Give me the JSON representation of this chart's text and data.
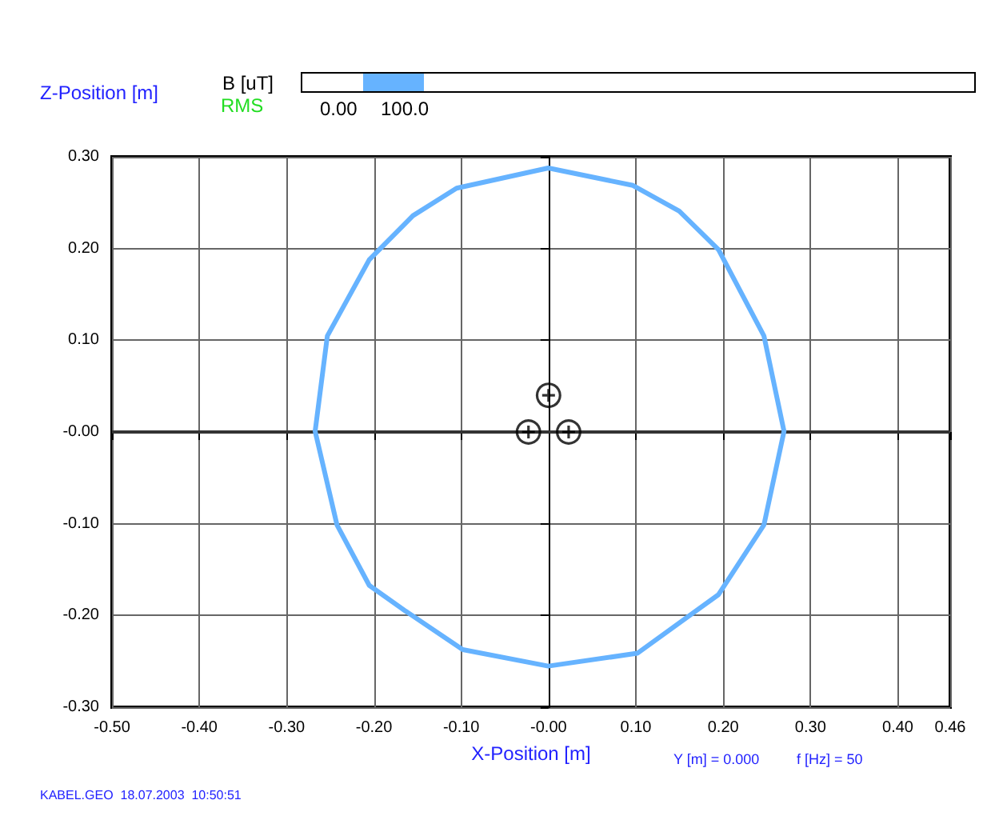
{
  "chart_data": {
    "type": "line",
    "xlabel": "X-Position [m]",
    "ylabel": "Z-Position [m]",
    "clabel": "B [uT]",
    "annotations": [
      "RMS",
      "Y [m] = 0.000",
      "f [Hz] = 50",
      "KABEL.GEO  18.07.2003  10:50:51",
      "0.00",
      "100.0"
    ],
    "xlim": [
      -0.5,
      0.46
    ],
    "ylim": [
      -0.3,
      0.3
    ],
    "xticks": [
      {
        "value": -0.5,
        "label": "-0.50"
      },
      {
        "value": -0.4,
        "label": "-0.40"
      },
      {
        "value": -0.3,
        "label": "-0.30"
      },
      {
        "value": -0.2,
        "label": "-0.20"
      },
      {
        "value": -0.1,
        "label": "-0.10"
      },
      {
        "value": 0,
        "label": "-0.00"
      },
      {
        "value": 0.1,
        "label": "0.10"
      },
      {
        "value": 0.2,
        "label": "0.20"
      },
      {
        "value": 0.3,
        "label": "0.30"
      },
      {
        "value": 0.4,
        "label": "0.40"
      },
      {
        "value": 0.46,
        "label": "0.46"
      }
    ],
    "yticks": [
      {
        "value": -0.3,
        "label": "-0.30"
      },
      {
        "value": -0.2,
        "label": "-0.20"
      },
      {
        "value": -0.1,
        "label": "-0.10"
      },
      {
        "value": 0,
        "label": "-0.00"
      },
      {
        "value": 0.1,
        "label": "0.10"
      },
      {
        "value": 0.2,
        "label": "0.20"
      },
      {
        "value": 0.3,
        "label": "0.30"
      }
    ],
    "grid": true,
    "ref_lines": [
      {
        "axis": "y",
        "value": 0,
        "color": "#333333"
      }
    ],
    "series": [
      {
        "type": "scatter",
        "color": "#000000",
        "marker": "circle",
        "x": [
          0.0,
          -0.023,
          0.023
        ],
        "values": [
          0.04,
          0.0,
          0.0
        ]
      }
    ]
  }
}
